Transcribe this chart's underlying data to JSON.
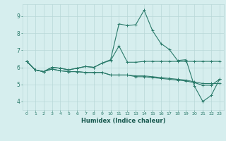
{
  "xlabel": "Humidex (Indice chaleur)",
  "xlim": [
    -0.5,
    23.5
  ],
  "ylim": [
    3.5,
    9.7
  ],
  "yticks": [
    4,
    5,
    6,
    7,
    8,
    9
  ],
  "xticks": [
    0,
    1,
    2,
    3,
    4,
    5,
    6,
    7,
    8,
    9,
    10,
    11,
    12,
    13,
    14,
    15,
    16,
    17,
    18,
    19,
    20,
    21,
    22,
    23
  ],
  "bg_color": "#d6eeee",
  "grid_color": "#b8d8d8",
  "line_color": "#2a7a6a",
  "line_width": 0.8,
  "marker": "+",
  "marker_size": 3,
  "series": [
    [
      6.35,
      5.85,
      5.75,
      6.0,
      5.95,
      5.85,
      5.95,
      6.05,
      6.0,
      6.25,
      6.45,
      8.55,
      8.45,
      8.5,
      9.35,
      8.15,
      7.4,
      7.05,
      6.4,
      6.45,
      4.9,
      4.0,
      4.35,
      5.3
    ],
    [
      6.35,
      5.85,
      5.75,
      6.0,
      5.95,
      5.85,
      5.95,
      6.05,
      6.0,
      6.25,
      6.4,
      7.25,
      6.3,
      6.3,
      6.35,
      6.35,
      6.35,
      6.35,
      6.35,
      6.35,
      6.35,
      6.35,
      6.35,
      6.35
    ],
    [
      6.35,
      5.85,
      5.75,
      5.9,
      5.8,
      5.75,
      5.75,
      5.7,
      5.7,
      5.7,
      5.55,
      5.55,
      5.55,
      5.5,
      5.5,
      5.45,
      5.4,
      5.35,
      5.3,
      5.25,
      5.15,
      5.05,
      5.05,
      5.05
    ],
    [
      6.35,
      5.85,
      5.75,
      5.9,
      5.8,
      5.75,
      5.75,
      5.7,
      5.7,
      5.7,
      5.55,
      5.55,
      5.55,
      5.45,
      5.45,
      5.4,
      5.35,
      5.3,
      5.25,
      5.2,
      5.1,
      4.95,
      4.95,
      5.3
    ]
  ]
}
